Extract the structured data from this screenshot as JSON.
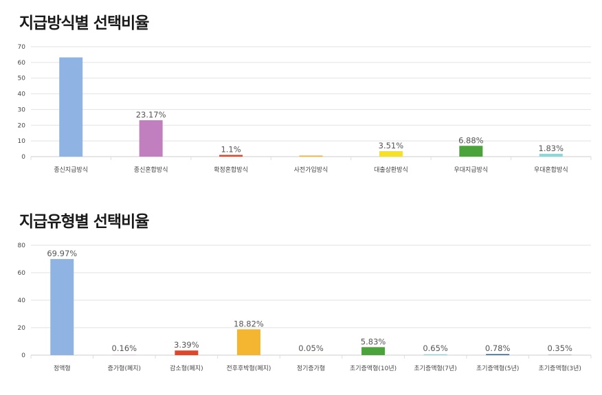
{
  "chart_data": [
    {
      "type": "bar",
      "title": "지급방식별 선택비율",
      "categories": [
        "종신지급방식",
        "종신혼합방식",
        "확정혼합방식",
        "사전가입방식",
        "대출상환방식",
        "우대지급방식",
        "우대혼합방식"
      ],
      "values": [
        63.2,
        23.17,
        1.1,
        0.7,
        3.51,
        6.88,
        1.83
      ],
      "data_labels": [
        "",
        "23.17%",
        "1.1%",
        "",
        "3.51%",
        "6.88%",
        "1.83%"
      ],
      "colors": [
        "#8fb4e3",
        "#c27fc0",
        "#e0462a",
        "#f4b531",
        "#f6e12a",
        "#4aa33b",
        "#8ed6d8"
      ],
      "ylim": [
        0,
        70
      ],
      "yticks": [
        0,
        10,
        20,
        30,
        40,
        50,
        60,
        70
      ],
      "grid": true,
      "xlabel": "",
      "ylabel": ""
    },
    {
      "type": "bar",
      "title": "지급유형별 선택비율",
      "categories": [
        "정액형",
        "증가형(폐지)",
        "감소형(폐지)",
        "전후후박형(폐지)",
        "정기증가형",
        "초기증액형(10년)",
        "초기증액형(7년)",
        "초기증액형(5년)",
        "초기증액형(3년)"
      ],
      "values": [
        69.97,
        0.16,
        3.39,
        18.82,
        0.05,
        5.83,
        0.65,
        0.78,
        0.35
      ],
      "data_labels": [
        "69.97%",
        "0.16%",
        "3.39%",
        "18.82%",
        "0.05%",
        "5.83%",
        "0.65%",
        "0.78%",
        "0.35%"
      ],
      "colors": [
        "#8fb4e3",
        "#c27fc0",
        "#e0462a",
        "#f4b531",
        "#f6e12a",
        "#4aa33b",
        "#8ed6d8",
        "#2d6a9a",
        "#9a9a9a"
      ],
      "ylim": [
        0,
        80
      ],
      "yticks": [
        0,
        20,
        40,
        60,
        80
      ],
      "grid": true,
      "xlabel": "",
      "ylabel": ""
    }
  ]
}
